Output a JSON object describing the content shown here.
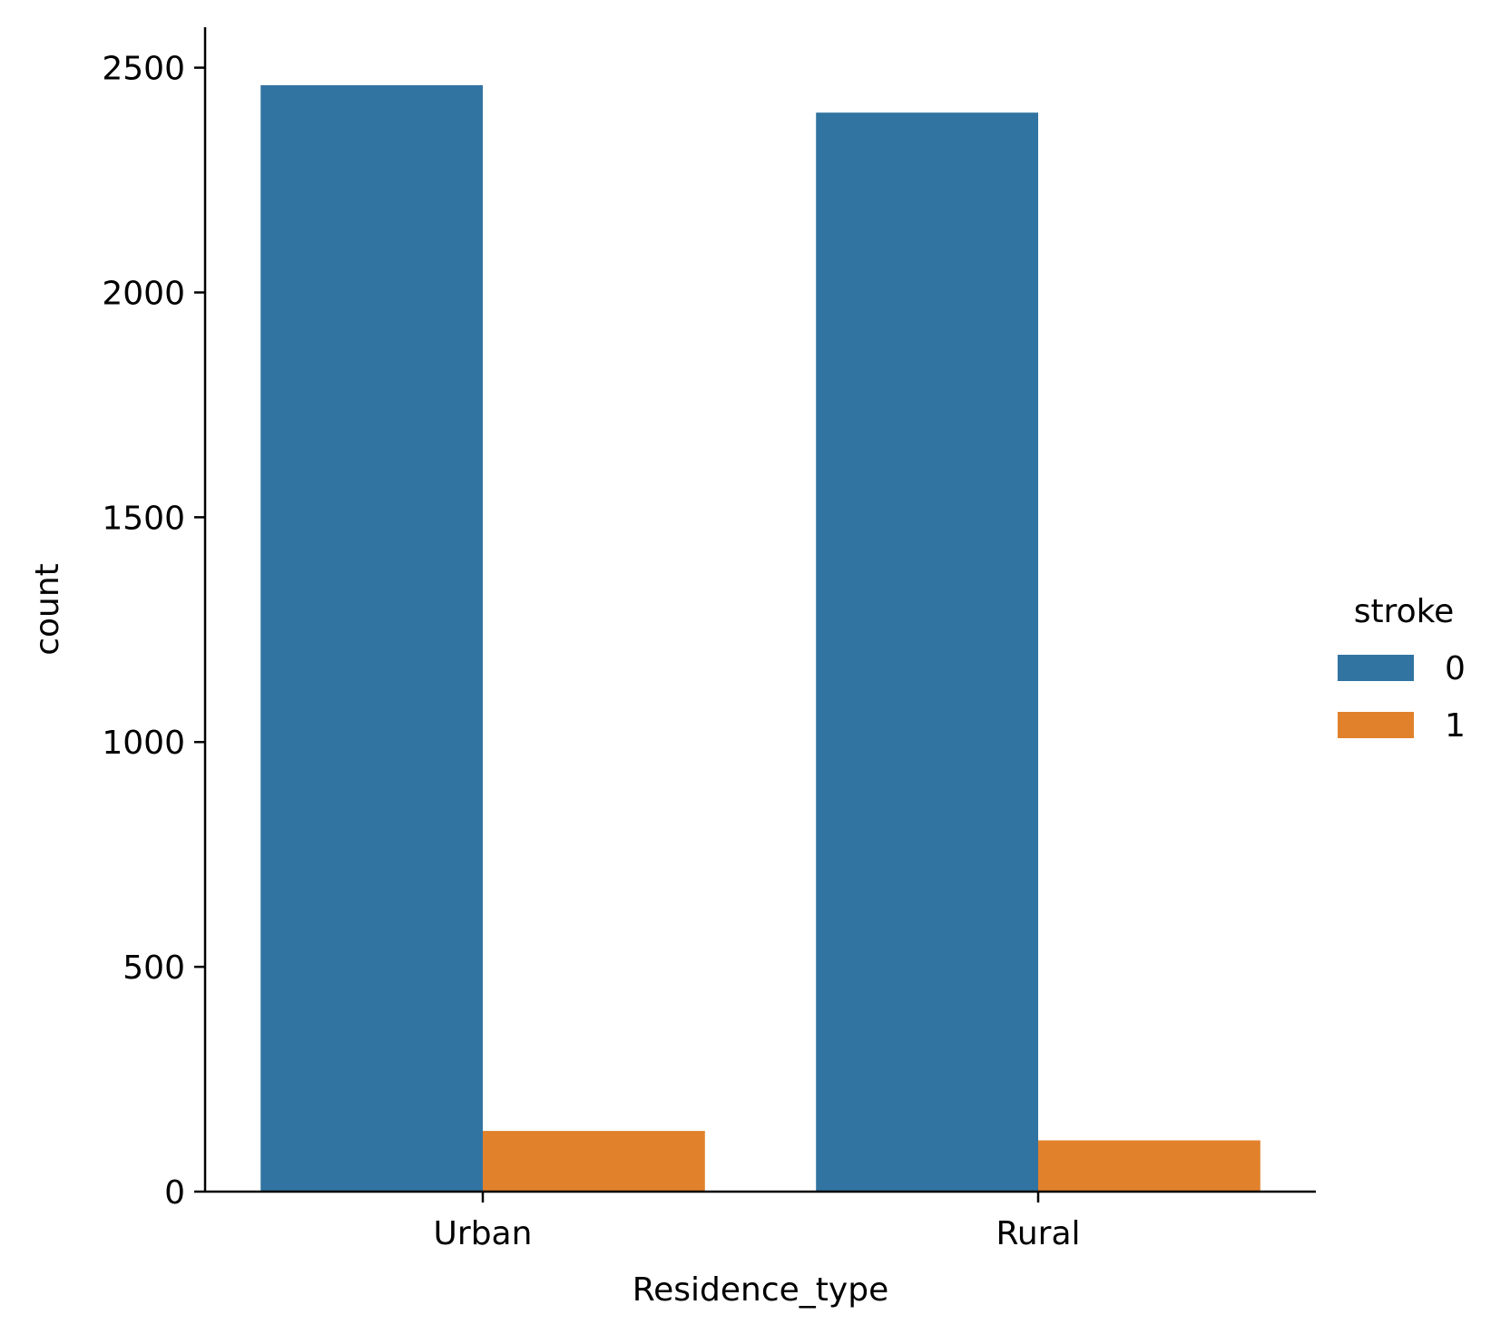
{
  "chart_data": {
    "type": "bar",
    "xlabel": "Residence_type",
    "ylabel": "count",
    "categories": [
      "Urban",
      "Rural"
    ],
    "ylim": [
      0,
      2590
    ],
    "yticks": [
      0,
      500,
      1000,
      1500,
      2000,
      2500
    ],
    "grid": false,
    "legend": {
      "title": "stroke",
      "position": "right",
      "entries": [
        "0",
        "1"
      ]
    },
    "series": [
      {
        "name": "0",
        "color": "#3274a1",
        "values": [
          2461,
          2400
        ]
      },
      {
        "name": "1",
        "color": "#e1812c",
        "values": [
          135,
          114
        ]
      }
    ]
  }
}
